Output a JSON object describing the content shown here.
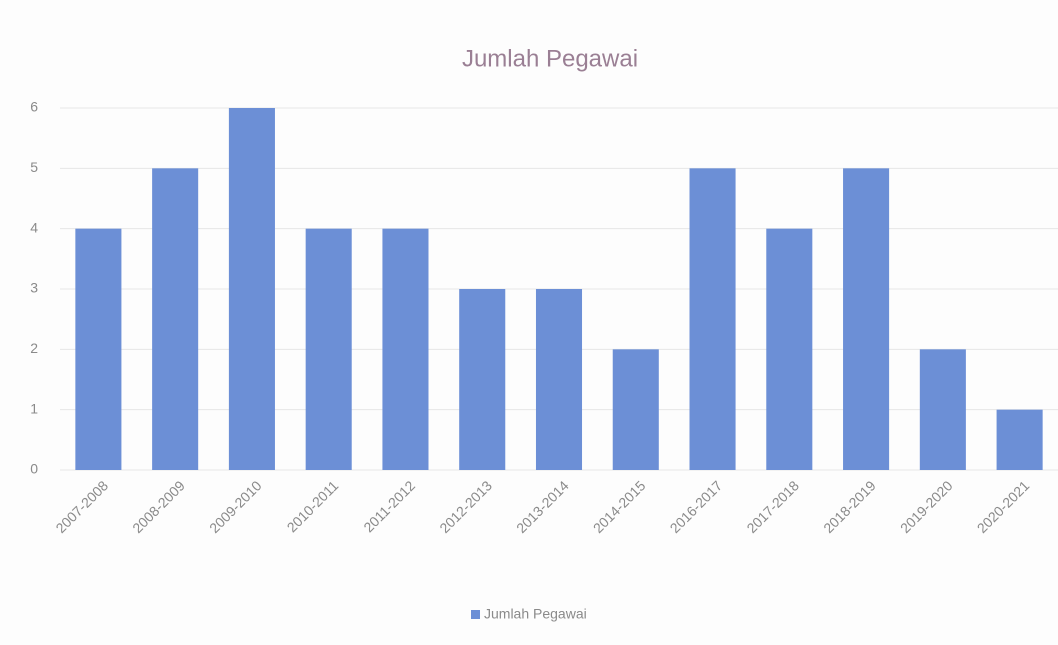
{
  "chart_data": {
    "type": "bar",
    "title": "Jumlah Pegawai",
    "categories": [
      "2007-2008",
      "2008-2009",
      "2009-2010",
      "2010-2011",
      "2011-2012",
      "2012-2013",
      "2013-2014",
      "2014-2015",
      "2016-2017",
      "2017-2018",
      "2018-2019",
      "2019-2020",
      "2020-2021"
    ],
    "series": [
      {
        "name": "Jumlah Pegawai",
        "color": "#6c8fd6",
        "values": [
          4,
          5,
          6,
          4,
          4,
          3,
          3,
          2,
          5,
          4,
          5,
          2,
          1
        ]
      }
    ],
    "ylim": [
      0,
      6
    ],
    "yticks": [
      0,
      1,
      2,
      3,
      4,
      5,
      6
    ],
    "grid": true,
    "legend": "bottom"
  }
}
